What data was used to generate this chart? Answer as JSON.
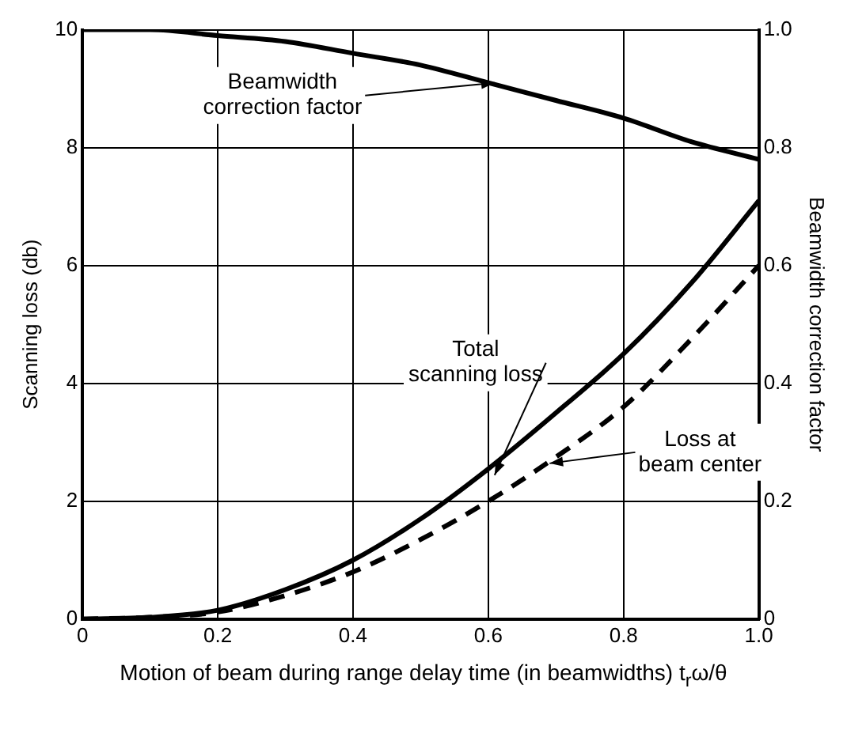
{
  "chart_data": {
    "type": "line",
    "xlabel": "Motion of beam during range delay time (in beamwidths) t$_{r}$ω/θ",
    "ylabel": "Scanning loss (db)",
    "y2label": "Beamwidth correction factor",
    "x": [
      0,
      0.1,
      0.2,
      0.3,
      0.4,
      0.5,
      0.6,
      0.7,
      0.8,
      0.9,
      1.0
    ],
    "series": [
      {
        "name": "Beamwidth correction factor",
        "color": "#000000",
        "axis": "y2",
        "line_style": "solid",
        "values": [
          1.0,
          1.0,
          0.99,
          0.98,
          0.96,
          0.94,
          0.91,
          0.88,
          0.85,
          0.81,
          0.78
        ]
      },
      {
        "name": "Total scanning loss",
        "color": "#000000",
        "line_style": "solid",
        "values": [
          0,
          0.03,
          0.15,
          0.5,
          1.0,
          1.7,
          2.55,
          3.5,
          4.5,
          5.7,
          7.1
        ]
      },
      {
        "name": "Loss at beam center",
        "color": "#000000",
        "line_style": "dashed",
        "values": [
          0,
          0.03,
          0.12,
          0.4,
          0.8,
          1.35,
          2.0,
          2.75,
          3.6,
          4.75,
          6.0
        ]
      }
    ],
    "xlim": [
      0,
      1.0
    ],
    "xticks": [
      0,
      0.2,
      0.4,
      0.6,
      0.8,
      {
        "value": 1.0,
        "label": "1.0"
      }
    ],
    "ylim": [
      0,
      10
    ],
    "yticks": [
      0,
      2,
      4,
      6,
      8,
      10
    ],
    "y2lim": [
      0,
      1.0
    ],
    "y2ticks": [
      0,
      0.2,
      0.4,
      0.6,
      0.8,
      {
        "value": 1.0,
        "label": "1.0"
      }
    ],
    "grid": true,
    "marker": "none"
  }
}
